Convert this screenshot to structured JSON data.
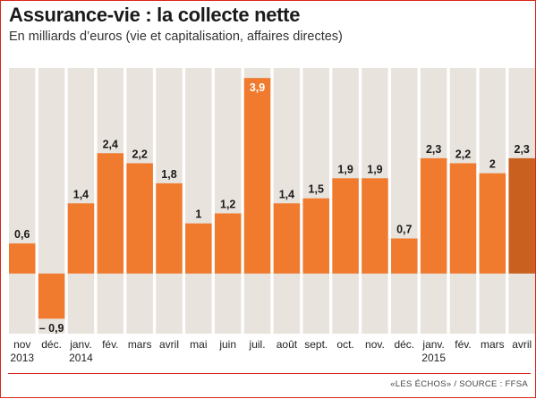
{
  "header": {
    "title": "Assurance-vie : la collecte nette",
    "subtitle": "En milliards d’euros (vie et capitalisation, affaires directes)"
  },
  "footer": {
    "source": "«LES ÉCHOS» / SOURCE : FFSA"
  },
  "colors": {
    "bar": "#f07a2d",
    "bar_highlight": "#c9601f",
    "column_bg": "#e9e3de",
    "accent_rule": "#d9261c"
  },
  "chart_data": {
    "type": "bar",
    "categories": [
      [
        "nov",
        "2013"
      ],
      [
        "déc.",
        ""
      ],
      [
        "janv.",
        "2014"
      ],
      [
        "fév.",
        ""
      ],
      [
        "mars",
        ""
      ],
      [
        "avril",
        ""
      ],
      [
        "mai",
        ""
      ],
      [
        "juin",
        ""
      ],
      [
        "juil.",
        ""
      ],
      [
        "août",
        ""
      ],
      [
        "sept.",
        ""
      ],
      [
        "oct.",
        ""
      ],
      [
        "nov.",
        ""
      ],
      [
        "déc.",
        ""
      ],
      [
        "janv.",
        "2015"
      ],
      [
        "fév.",
        ""
      ],
      [
        "mars",
        ""
      ],
      [
        "avril",
        ""
      ]
    ],
    "values": [
      0.6,
      -0.9,
      1.4,
      2.4,
      2.2,
      1.8,
      1,
      1.2,
      3.9,
      1.4,
      1.5,
      1.9,
      1.9,
      0.7,
      2.3,
      2.2,
      2,
      2.3
    ],
    "labels": [
      "0,6",
      "– 0,9",
      "1,4",
      "2,4",
      "2,2",
      "1,8",
      "1",
      "1,2",
      "3,9",
      "1,4",
      "1,5",
      "1,9",
      "1,9",
      "0,7",
      "2,3",
      "2,2",
      "2",
      "2,3"
    ],
    "highlight_index": 17,
    "inside_label_index": 8,
    "title": "Assurance-vie : la collecte nette",
    "ylabel": "",
    "xlabel": "",
    "ylim": [
      -1.2,
      4.1
    ],
    "grid": false,
    "legend": "none"
  }
}
